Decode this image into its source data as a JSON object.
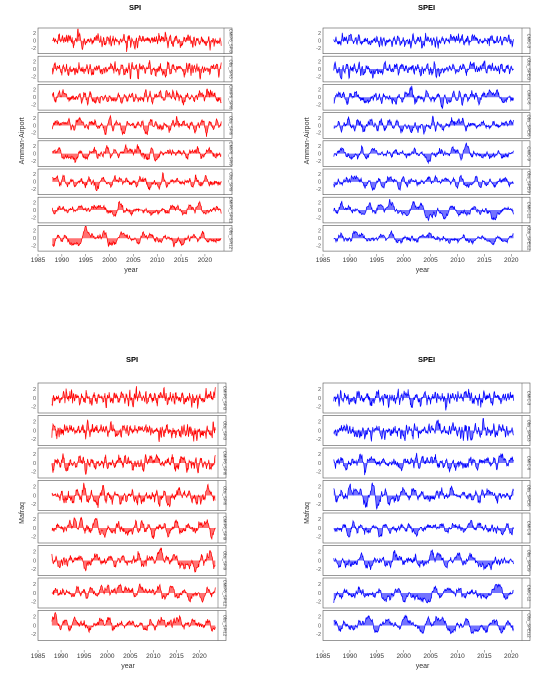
{
  "colors": {
    "spi": "#ff0000",
    "spei": "#0000ff",
    "frame": "#555555"
  },
  "chart_data": [
    {
      "type": "area",
      "title": "SPI",
      "xlabel": "year",
      "ylabel": "Amman-Airport",
      "color": "#ff0000",
      "x_range": [
        1985,
        2024
      ],
      "x_ticks": [
        1985,
        1990,
        1995,
        2000,
        2005,
        2010,
        2015,
        2020
      ],
      "y_ticks": [
        2,
        0,
        -2
      ],
      "ylim": [
        -3.2,
        3.2
      ],
      "series_start": 1988,
      "series_end": 2023.5,
      "seed": 11,
      "panels": [
        "CMIP6_SPI3",
        "Obs_SPI3",
        "CMIP6_SPI6",
        "Obs_SPI6",
        "CMIP6_SPI9",
        "Obs_SPI9",
        "CMIP6_SPI12",
        "Obs_SPI12"
      ]
    },
    {
      "type": "area",
      "title": "SPEI",
      "xlabel": "year",
      "ylabel": "Amman-Airport",
      "color": "#0000ff",
      "x_range": [
        1985,
        2022
      ],
      "x_ticks": [
        1985,
        1990,
        1995,
        2000,
        2005,
        2010,
        2015,
        2020
      ],
      "y_ticks": [
        2,
        0,
        -2
      ],
      "ylim": [
        -3.2,
        3.2
      ],
      "series_start": 1987,
      "series_end": 2020.5,
      "seed": 23,
      "panels": [
        "CMIC-3",
        "Obs_SPEI3",
        "CMIC-6",
        "Obs_SPEI6",
        "CMIC-9",
        "Obs_SPEI9",
        "CMIC-12",
        "Obs_SPEI12"
      ]
    },
    {
      "type": "area",
      "title": "SPI",
      "xlabel": "year",
      "ylabel": "Mafraq",
      "color": "#ff0000",
      "x_range": [
        1985,
        2024
      ],
      "x_ticks": [
        1985,
        1990,
        1995,
        2000,
        2005,
        2010,
        2015,
        2020
      ],
      "y_ticks": [
        2,
        0,
        -2
      ],
      "ylim": [
        -3.2,
        3.2
      ],
      "series_start": 1988,
      "series_end": 2023.5,
      "seed": 37,
      "panels": [
        "CMIP6_SPI3",
        "Obs_SPI3",
        "CMIP6_SPI6",
        "Obs_SPI6",
        "CMIP6_SPI9",
        "Obs_SPI9",
        "CMIP6_SPI12",
        "Obs_SPI12"
      ]
    },
    {
      "type": "area",
      "title": "SPEI",
      "xlabel": "year",
      "ylabel": "Mafraq",
      "color": "#0000ff",
      "x_range": [
        1985,
        2022
      ],
      "x_ticks": [
        1985,
        1990,
        1995,
        2000,
        2005,
        2010,
        2015,
        2020
      ],
      "y_ticks": [
        2,
        0,
        -2
      ],
      "ylim": [
        -3.2,
        3.2
      ],
      "series_start": 1987,
      "series_end": 2020.5,
      "seed": 53,
      "panels": [
        "CMIC-3",
        "Obs_SPEI3",
        "CMIC-6",
        "Obs_SPEI6",
        "CMIC-9",
        "Obs_SPEI9",
        "CMIC-12",
        "Obs_SPEI12"
      ]
    }
  ]
}
